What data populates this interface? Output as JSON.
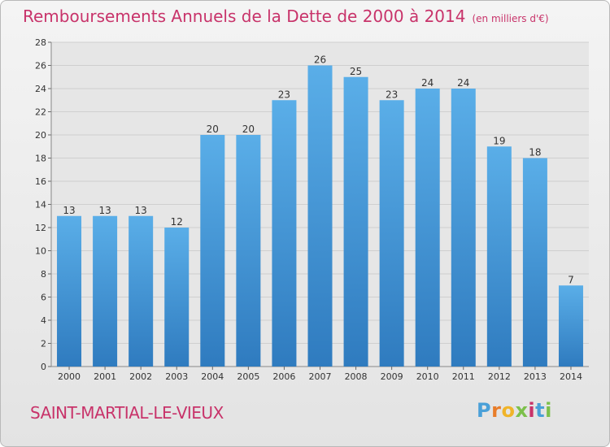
{
  "header": {
    "title": "Remboursements Annuels de la Dette de 2000 à 2014",
    "unit": "(en milliers d'€)"
  },
  "footer": {
    "place": "SAINT-MARTIAL-LE-VIEUX",
    "logo": [
      "P",
      "r",
      "o",
      "x",
      "i",
      "t",
      "i"
    ]
  },
  "colors": {
    "bar_top": "#5aaee8",
    "bar_bottom": "#2f7bbf",
    "title": "#c8336a",
    "logo": [
      "#4aa0d8",
      "#e87d2a",
      "#f0b429",
      "#7cc04b",
      "#c8336a",
      "#4aa0d8",
      "#7cc04b"
    ]
  },
  "chart_data": {
    "type": "bar",
    "categories": [
      "2000",
      "2001",
      "2002",
      "2003",
      "2004",
      "2005",
      "2006",
      "2007",
      "2008",
      "2009",
      "2010",
      "2011",
      "2012",
      "2013",
      "2014"
    ],
    "values": [
      13,
      13,
      13,
      12,
      20,
      20,
      23,
      26,
      25,
      23,
      24,
      24,
      19,
      18,
      7
    ],
    "ylim": [
      0,
      28
    ],
    "yticks": [
      0,
      2,
      4,
      6,
      8,
      10,
      12,
      14,
      16,
      18,
      20,
      22,
      24,
      26,
      28
    ],
    "grid": true
  }
}
